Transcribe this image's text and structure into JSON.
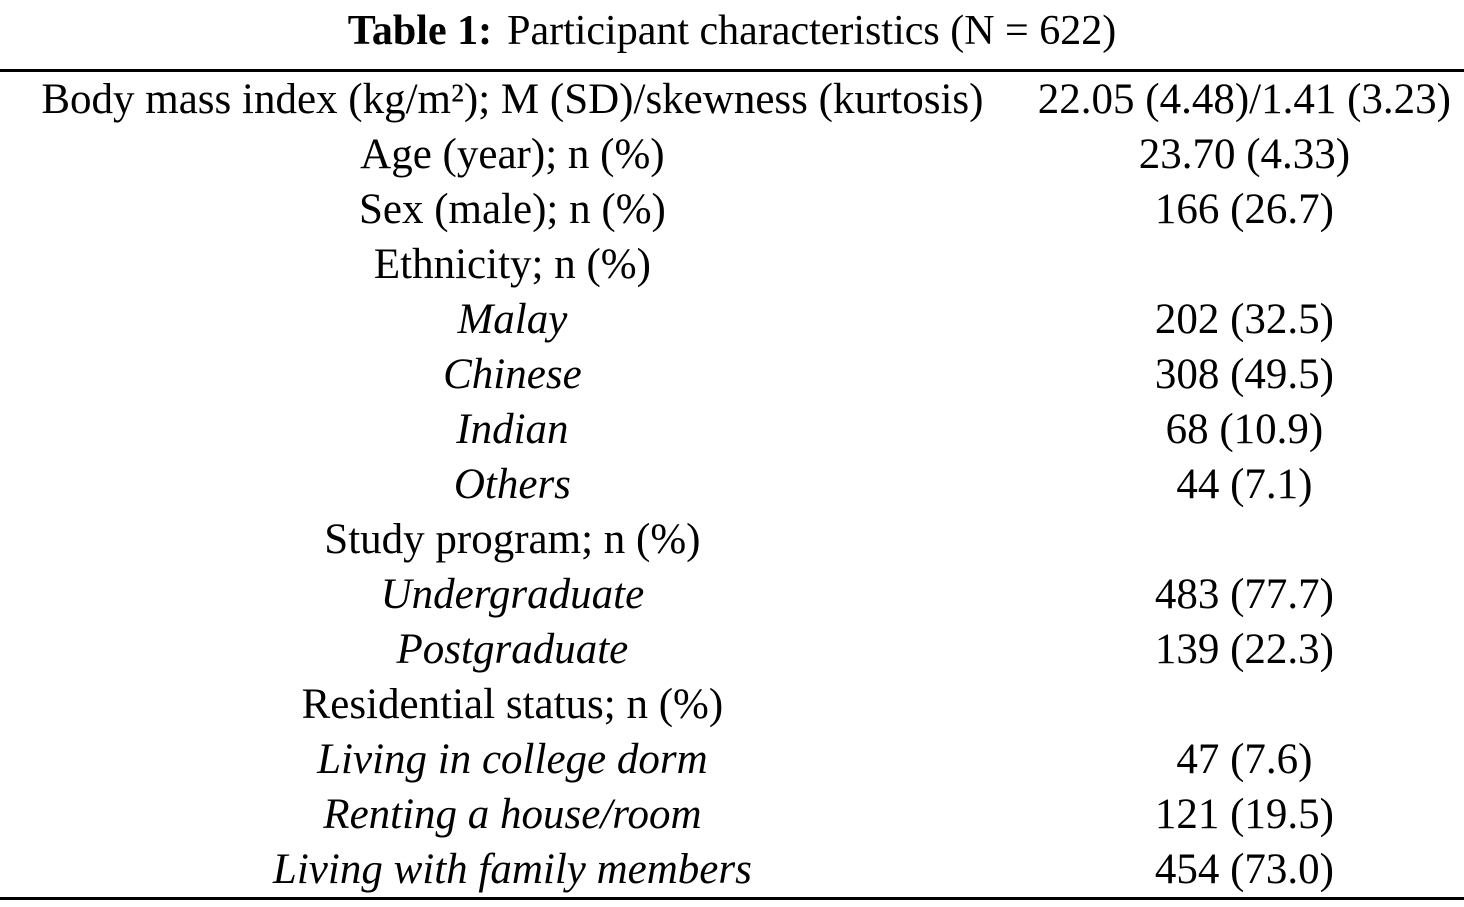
{
  "caption": {
    "label": "Table 1:",
    "text": "Participant characteristics (N = 622)"
  },
  "table": {
    "rows": [
      {
        "label": "Body mass index (kg/m²); M (SD)/skewness (kurtosis)",
        "value": "22.05 (4.48)/1.41 (3.23)",
        "subitem": false
      },
      {
        "label": "Age (year); n (%)",
        "value": "23.70 (4.33)",
        "subitem": false
      },
      {
        "label": "Sex (male); n (%)",
        "value": "166 (26.7)",
        "subitem": false
      },
      {
        "label": "Ethnicity; n (%)",
        "value": "",
        "subitem": false
      },
      {
        "label": "Malay",
        "value": "202 (32.5)",
        "subitem": true
      },
      {
        "label": "Chinese",
        "value": "308 (49.5)",
        "subitem": true
      },
      {
        "label": "Indian",
        "value": "68 (10.9)",
        "subitem": true
      },
      {
        "label": "Others",
        "value": "44 (7.1)",
        "subitem": true
      },
      {
        "label": "Study program; n (%)",
        "value": "",
        "subitem": false
      },
      {
        "label": "Undergraduate",
        "value": "483 (77.7)",
        "subitem": true
      },
      {
        "label": "Postgraduate",
        "value": "139 (22.3)",
        "subitem": true
      },
      {
        "label": "Residential status; n (%)",
        "value": "",
        "subitem": false
      },
      {
        "label": "Living in college dorm",
        "value": "47 (7.6)",
        "subitem": true
      },
      {
        "label": "Renting a house/room",
        "value": "121 (19.5)",
        "subitem": true
      },
      {
        "label": "Living with family members",
        "value": "454 (73.0)",
        "subitem": true
      }
    ]
  },
  "colors": {
    "text": "#000000",
    "background": "#ffffff",
    "rule": "#000000"
  }
}
